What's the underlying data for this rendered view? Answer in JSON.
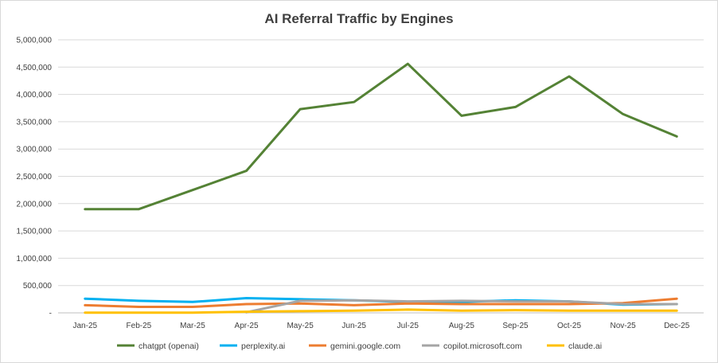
{
  "chart_data": {
    "type": "line",
    "title": "AI Referral Traffic by Engines",
    "xlabel": "",
    "ylabel": "",
    "categories": [
      "Jan-25",
      "Feb-25",
      "Mar-25",
      "Apr-25",
      "May-25",
      "Jun-25",
      "Jul-25",
      "Aug-25",
      "Sep-25",
      "Oct-25",
      "Nov-25",
      "Dec-25"
    ],
    "y_ticks": [
      "-",
      "500,000",
      "1,000,000",
      "1,500,000",
      "2,000,000",
      "2,500,000",
      "3,000,000",
      "3,500,000",
      "4,000,000",
      "4,500,000",
      "5,000,000"
    ],
    "ylim": [
      0,
      5000000
    ],
    "grid": true,
    "legend_position": "bottom",
    "series": [
      {
        "name": "chatgpt (openai)",
        "color": "#548235",
        "values": [
          1900000,
          1900000,
          2250000,
          2600000,
          3730000,
          3860000,
          4560000,
          3610000,
          3770000,
          4330000,
          3640000,
          3230000
        ]
      },
      {
        "name": "perplexity.ai",
        "color": "#00b0f0",
        "values": [
          260000,
          220000,
          200000,
          270000,
          250000,
          230000,
          200000,
          200000,
          230000,
          210000,
          150000,
          160000
        ]
      },
      {
        "name": "gemini.google.com",
        "color": "#ed7d31",
        "values": [
          140000,
          110000,
          110000,
          160000,
          170000,
          140000,
          170000,
          160000,
          160000,
          160000,
          180000,
          260000
        ]
      },
      {
        "name": "copilot.microsoft.com",
        "color": "#a5a5a5",
        "values": [
          null,
          null,
          null,
          10000,
          220000,
          230000,
          210000,
          220000,
          210000,
          210000,
          160000,
          160000
        ]
      },
      {
        "name": "claude.ai",
        "color": "#ffc000",
        "values": [
          5000,
          5000,
          5000,
          20000,
          30000,
          40000,
          60000,
          40000,
          50000,
          40000,
          40000,
          40000
        ]
      }
    ]
  }
}
